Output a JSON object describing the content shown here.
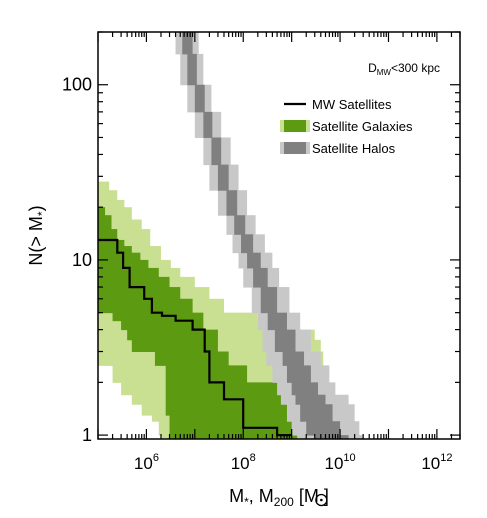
{
  "chart_data": {
    "type": "area",
    "title": "",
    "xlabel": {
      "main": "M",
      "sub1": "*",
      "mid": ", M",
      "sub2": "200",
      "unit_open": " [M",
      "unit_close": "]"
    },
    "ylabel": {
      "main": "N(> M",
      "sub": "*",
      "close": ")"
    },
    "xscale": "log",
    "yscale": "log",
    "xlim": [
      100000.0,
      3000000000000.0
    ],
    "ylim": [
      0.95,
      200
    ],
    "xticks": [
      {
        "value": 1000000.0,
        "base": "10",
        "exp": "6"
      },
      {
        "value": 100000000.0,
        "base": "10",
        "exp": "8"
      },
      {
        "value": 10000000000.0,
        "base": "10",
        "exp": "10"
      },
      {
        "value": 1000000000000.0,
        "base": "10",
        "exp": "12"
      }
    ],
    "yticks": [
      {
        "value": 1,
        "label": "1"
      },
      {
        "value": 10,
        "label": "10"
      },
      {
        "value": 100,
        "label": "100"
      }
    ],
    "annotation": {
      "main": "D",
      "sub": "MW",
      "rest": "<300 kpc"
    },
    "legend_position": "top-right",
    "legend": [
      {
        "label": "MW Satellites",
        "kind": "line",
        "color": "#000000"
      },
      {
        "label": "Satellite Galaxies",
        "kind": "band",
        "color": "#5c9a12",
        "outer_color": "#c9e092"
      },
      {
        "label": "Satellite Halos",
        "kind": "band",
        "color": "#808080",
        "outer_color": "#c8c8c8"
      }
    ],
    "colors": {
      "galaxies_inner": "#5c9a12",
      "galaxies_outer": "#c9e092",
      "halos_inner": "#808080",
      "halos_outer": "#c8c8c8",
      "mw_line": "#000000"
    },
    "series": [
      {
        "name": "Satellite Galaxies",
        "band": "outer",
        "y": [
          28,
          25,
          22,
          20,
          17,
          15,
          12,
          10,
          9,
          8,
          7,
          6,
          5,
          4.5,
          4,
          3.5,
          3,
          2.5,
          2,
          1.7,
          1.5,
          1.3,
          1.2,
          1
        ],
        "x_low": [
          100000.0,
          100000.0,
          100000.0,
          100000.0,
          100000.0,
          100000.0,
          100000.0,
          100000.0,
          100000.0,
          100000.0,
          100000.0,
          100000.0,
          100000.0,
          100000.0,
          100000.0,
          100000.0,
          100000.0,
          200000.0,
          300000.0,
          500000.0,
          800000.0,
          1300000.0,
          1800000.0,
          2000000.0
        ],
        "x_high": [
          170000.0,
          250000.0,
          350000.0,
          500000.0,
          800000.0,
          1200000.0,
          2000000.0,
          3200000.0,
          5000000.0,
          10000000.0,
          20000000.0,
          40000000.0,
          200000000.0,
          1000000000.0,
          3000000000.0,
          4000000000.0,
          4500000000.0,
          4500000000.0,
          4500000000.0,
          4500000000.0,
          4500000000.0,
          4500000000.0,
          4500000000.0,
          4500000000.0
        ]
      },
      {
        "name": "Satellite Galaxies",
        "band": "inner",
        "y": [
          20,
          18,
          15,
          13,
          12,
          11,
          10,
          9,
          8,
          7,
          6,
          5,
          4.5,
          4,
          3.5,
          3,
          2.5,
          2,
          1.7,
          1.5,
          1.3,
          1.2,
          1
        ],
        "x_low": [
          100000.0,
          100000.0,
          100000.0,
          100000.0,
          100000.0,
          100000.0,
          100000.0,
          100000.0,
          100000.0,
          100000.0,
          100000.0,
          200000.0,
          300000.0,
          400000.0,
          500000.0,
          1500000.0,
          2500000.0,
          2500000.0,
          2500000.0,
          2500000.0,
          3000000.0,
          3000000.0,
          3000000.0
        ],
        "x_high": [
          140000.0,
          190000.0,
          250000.0,
          350000.0,
          500000.0,
          750000.0,
          1100000.0,
          1800000.0,
          3000000.0,
          5000000.0,
          9000000.0,
          15000000.0,
          15000000.0,
          30000000.0,
          30000000.0,
          50000000.0,
          120000000.0,
          800000000.0,
          1500000000.0,
          1500000000.0,
          1500000000.0,
          1500000000.0,
          1500000000.0
        ]
      },
      {
        "name": "MW Satellites",
        "type": "step",
        "x": [
          100000.0,
          250000.0,
          250000.0,
          330000.0,
          330000.0,
          450000.0,
          450000.0,
          900000.0,
          900000.0,
          1300000.0,
          1300000.0,
          2100000.0,
          2100000.0,
          4000000.0,
          4000000.0,
          9000000.0,
          9000000.0,
          16000000.0,
          16000000.0,
          20000000.0,
          20000000.0,
          40000000.0,
          40000000.0,
          100000000.0,
          100000000.0,
          500000000.0,
          500000000.0,
          1000000000.0
        ],
        "y": [
          13,
          13,
          11,
          11,
          9,
          9,
          7,
          7,
          6,
          6,
          5,
          5,
          4.8,
          4.8,
          4.5,
          4.5,
          4,
          4,
          3,
          3,
          2,
          2,
          1.6,
          1.6,
          1.1,
          1.1,
          1,
          1
        ]
      },
      {
        "name": "Satellite Halos",
        "band": "outer",
        "y": [
          200,
          150,
          100,
          70,
          50,
          35,
          25,
          18,
          14,
          11,
          9,
          7,
          5,
          4,
          3,
          2.5,
          2,
          1.7,
          1.5,
          1.2,
          1
        ],
        "x_low": [
          4000000.0,
          5000000.0,
          7000000.0,
          10000000.0,
          15000000.0,
          20000000.0,
          30000000.0,
          45000000.0,
          60000000.0,
          80000000.0,
          100000000.0,
          150000000.0,
          200000000.0,
          250000000.0,
          300000000.0,
          400000000.0,
          500000000.0,
          600000000.0,
          800000000.0,
          1000000000.0,
          1300000000.0
        ],
        "x_high": [
          12000000.0,
          15000000.0,
          22000000.0,
          35000000.0,
          55000000.0,
          80000000.0,
          120000000.0,
          180000000.0,
          280000000.0,
          400000000.0,
          550000000.0,
          900000000.0,
          1500000000.0,
          2500000000.0,
          4000000000.0,
          6000000000.0,
          8000000000.0,
          15000000000.0,
          20000000000.0,
          25000000000.0,
          30000000000.0
        ]
      },
      {
        "name": "Satellite Halos",
        "band": "inner",
        "y": [
          200,
          150,
          100,
          70,
          50,
          35,
          25,
          18,
          14,
          11,
          9,
          7,
          5,
          4,
          3,
          2.5,
          2,
          1.7,
          1.5,
          1.2,
          1
        ],
        "x_low": [
          5500000.0,
          7000000.0,
          10000000.0,
          15000000.0,
          22000000.0,
          30000000.0,
          45000000.0,
          65000000.0,
          90000000.0,
          120000000.0,
          160000000.0,
          230000000.0,
          320000000.0,
          450000000.0,
          650000000.0,
          800000000.0,
          1000000000.0,
          1200000000.0,
          1500000000.0,
          2000000000.0,
          3000000000.0
        ],
        "x_high": [
          9000000.0,
          11000000.0,
          16000000.0,
          23000000.0,
          35000000.0,
          50000000.0,
          75000000.0,
          110000000.0,
          160000000.0,
          230000000.0,
          320000000.0,
          500000000.0,
          800000000.0,
          1200000000.0,
          1800000000.0,
          2500000000.0,
          3500000000.0,
          5000000000.0,
          7000000000.0,
          10000000000.0,
          15000000000.0
        ]
      }
    ]
  }
}
